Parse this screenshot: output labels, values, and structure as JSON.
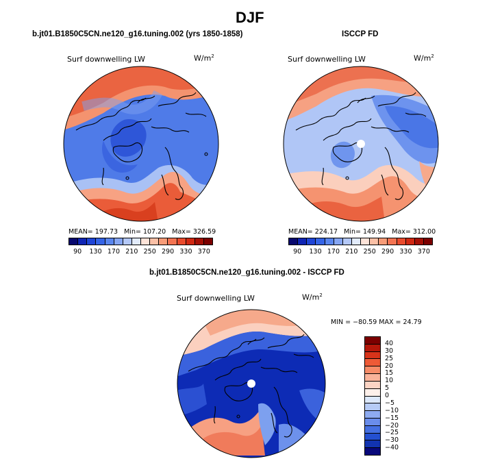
{
  "title": "DJF",
  "panels": [
    {
      "subtitle": "b.jt01.B1850C5CN.ne120_g16.tuning.002 (yrs 1850-1858)",
      "field": "Surf downwelling LW",
      "units_base": "W/m",
      "units_exp": "2",
      "mean_label": "MEAN=",
      "mean": "197.73",
      "min_label": "Min=",
      "min": "107.20",
      "max_label": "Max=",
      "max": "326.59"
    },
    {
      "subtitle": "ISCCP FD",
      "field": "Surf downwelling LW",
      "units_base": "W/m",
      "units_exp": "2",
      "mean_label": "MEAN=",
      "mean": "224.17",
      "min_label": "Min=",
      "min": "149.94",
      "max_label": "Max=",
      "max": "312.00"
    },
    {
      "subtitle": "b.jt01.B1850C5CN.ne120_g16.tuning.002 - ISCCP FD",
      "field": "Surf downwelling LW",
      "units_base": "W/m",
      "units_exp": "2",
      "minmax": "MIN = −80.59 MAX =   24.79"
    }
  ],
  "abs_colorbar": {
    "tick_labels": [
      "90",
      "130",
      "170",
      "210",
      "250",
      "290",
      "330",
      "370"
    ],
    "colors": [
      "#08086e",
      "#0f24b4",
      "#1f45d7",
      "#3564e6",
      "#5a86ee",
      "#86a6f3",
      "#b4c8f7",
      "#e2ebfb",
      "#fde3d8",
      "#fbc0a6",
      "#f89c78",
      "#f47452",
      "#e94b2d",
      "#d02812",
      "#a50f05",
      "#7c0000"
    ]
  },
  "diff_colorbar": {
    "tick_labels": [
      "40",
      "30",
      "25",
      "20",
      "15",
      "10",
      "5",
      "0",
      "−5",
      "−10",
      "−15",
      "−20",
      "−25",
      "−30",
      "−40"
    ],
    "colors": [
      "#7c0000",
      "#b5170a",
      "#d8331a",
      "#ee5a36",
      "#f78c68",
      "#fab39a",
      "#fcd4c4",
      "#fdf0ea",
      "#dce8fb",
      "#b6cbf6",
      "#8eabf1",
      "#6a8deb",
      "#4570e2",
      "#2450d1",
      "#1234b0",
      "#08087a"
    ]
  }
}
